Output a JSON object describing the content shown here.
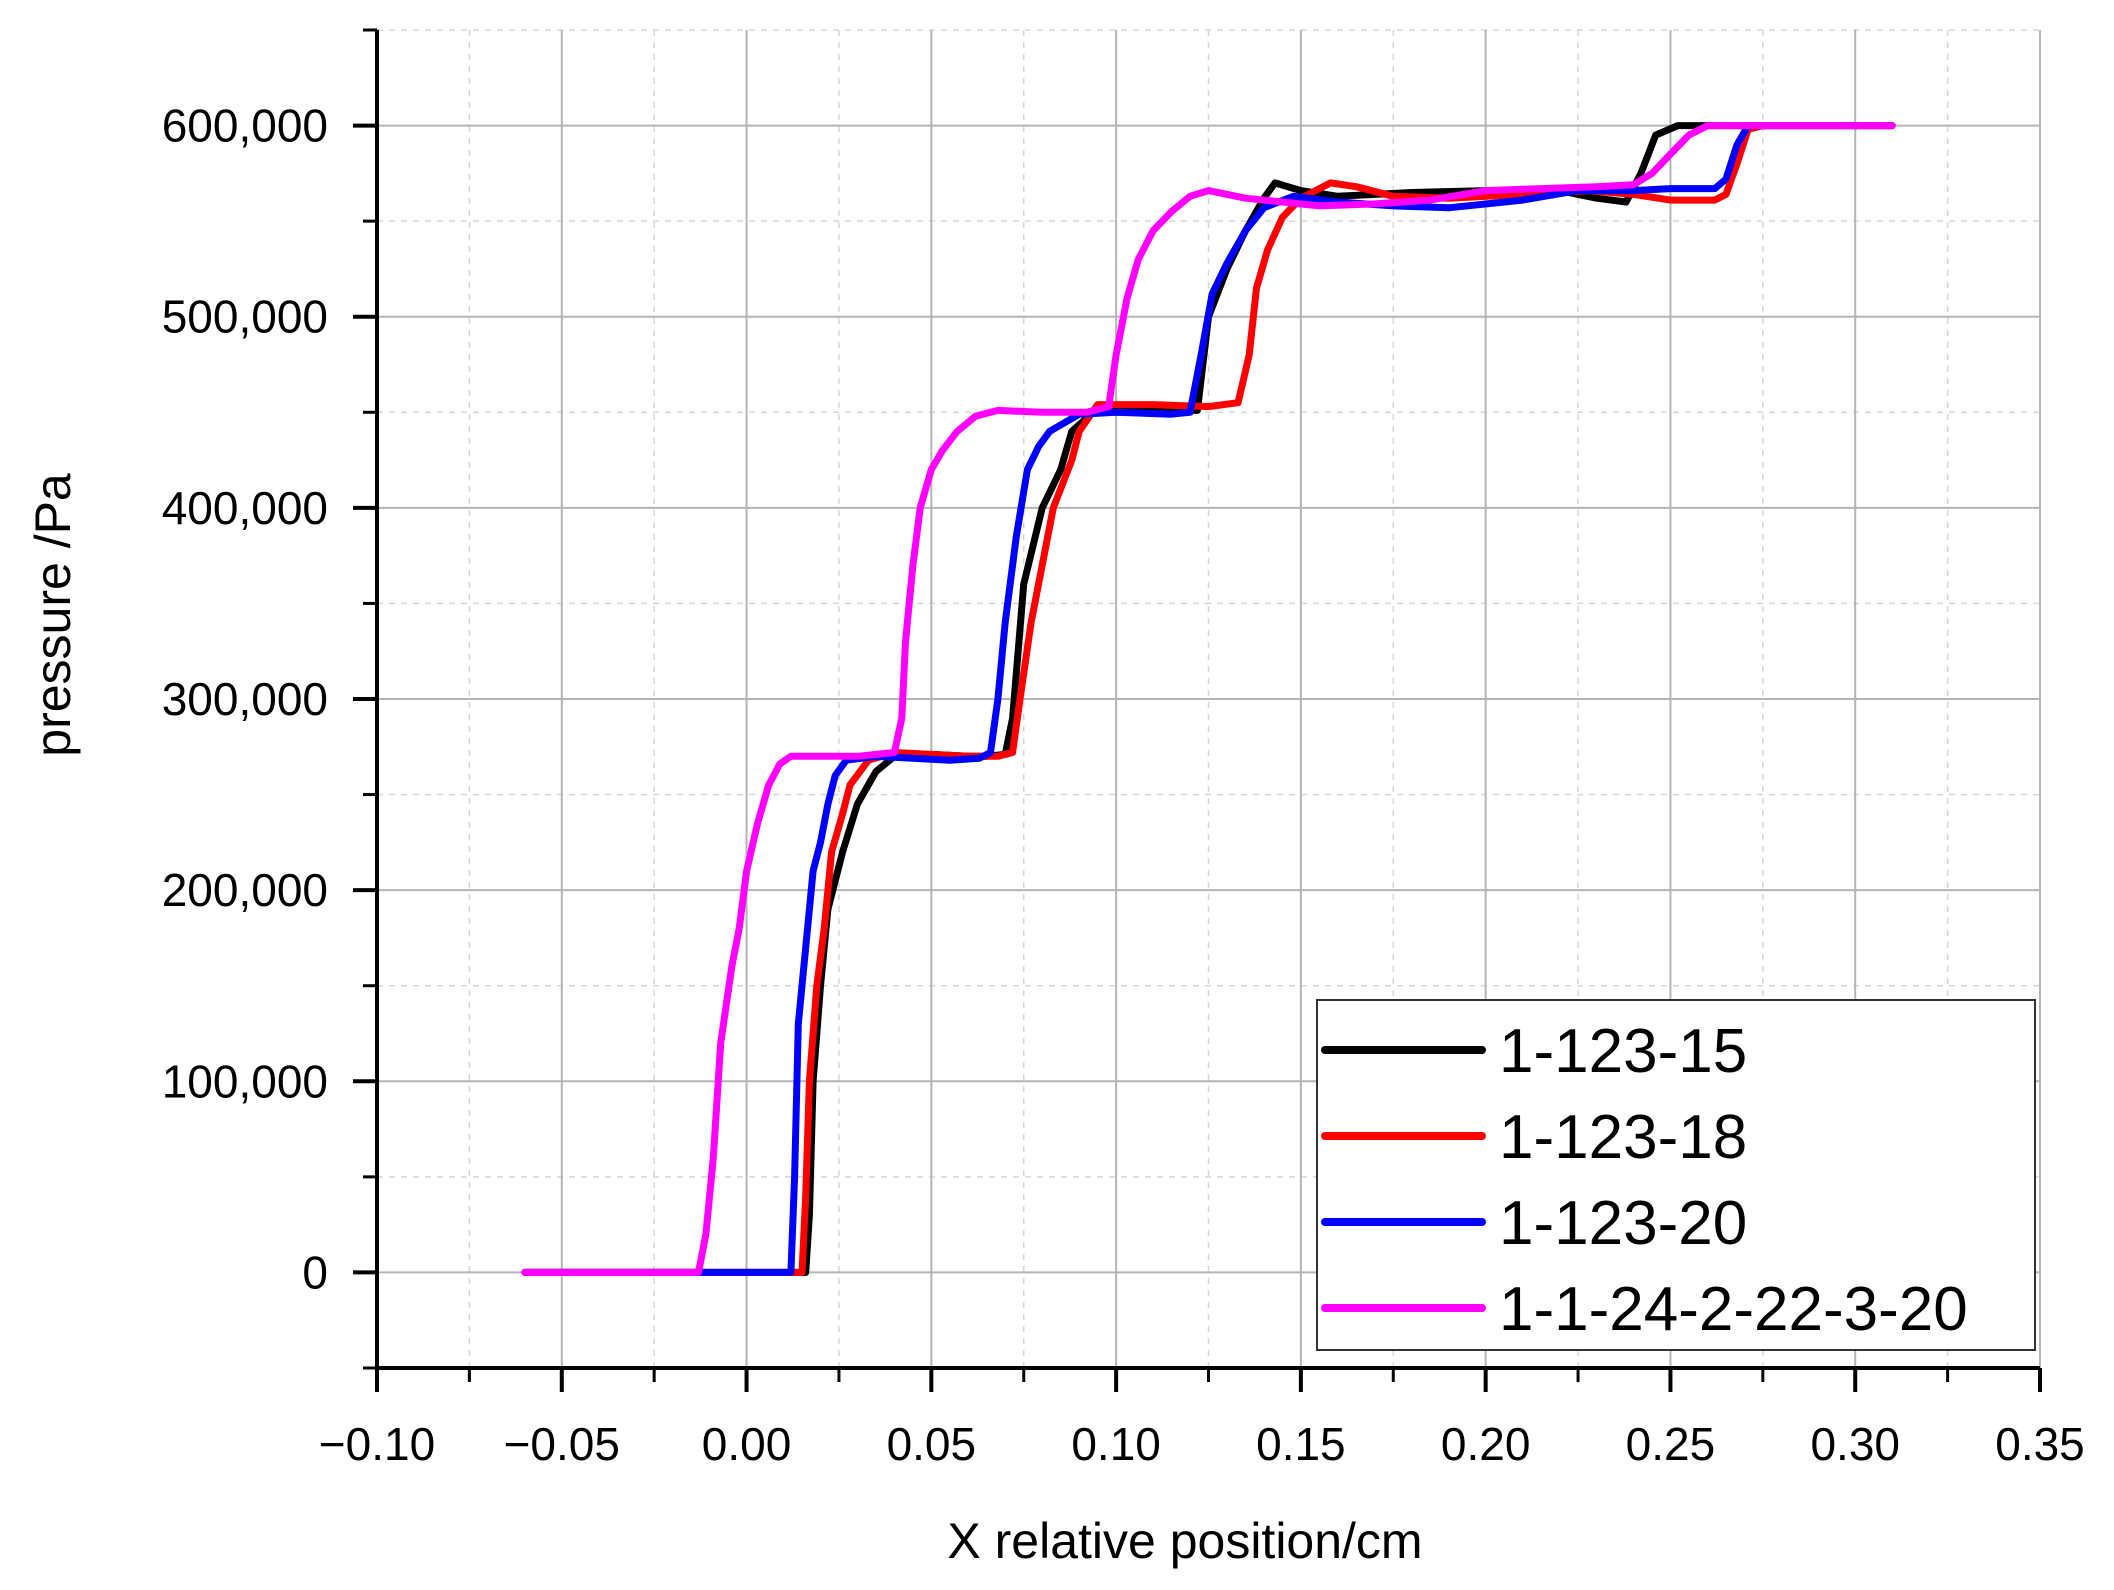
{
  "chart_data": {
    "type": "line",
    "title": "",
    "xlabel": "X relative position/cm",
    "ylabel": "pressure /Pa",
    "xlim": [
      -0.1,
      0.35
    ],
    "ylim": [
      -50000,
      650000
    ],
    "xticks": [
      -0.1,
      -0.05,
      0.0,
      0.05,
      0.1,
      0.15,
      0.2,
      0.25,
      0.3,
      0.35
    ],
    "xtick_labels": [
      "−0.10",
      "−0.05",
      "0.00",
      "0.05",
      "0.10",
      "0.15",
      "0.20",
      "0.25",
      "0.30",
      "0.35"
    ],
    "yticks": [
      0,
      100000,
      200000,
      300000,
      400000,
      500000,
      600000
    ],
    "ytick_labels": [
      "0",
      "100,000",
      "200,000",
      "300,000",
      "400,000",
      "500,000",
      "600,000"
    ],
    "grid": true,
    "legend_position": "bottom-right",
    "series": [
      {
        "name": "1-123-15",
        "color": "#000000",
        "points": [
          [
            -0.06,
            0
          ],
          [
            0.016,
            0
          ],
          [
            0.017,
            30000
          ],
          [
            0.018,
            100000
          ],
          [
            0.02,
            150000
          ],
          [
            0.022,
            190000
          ],
          [
            0.026,
            220000
          ],
          [
            0.03,
            245000
          ],
          [
            0.035,
            262000
          ],
          [
            0.04,
            270000
          ],
          [
            0.05,
            271000
          ],
          [
            0.06,
            270000
          ],
          [
            0.065,
            270000
          ],
          [
            0.07,
            271000
          ],
          [
            0.072,
            290000
          ],
          [
            0.075,
            360000
          ],
          [
            0.08,
            400000
          ],
          [
            0.085,
            420000
          ],
          [
            0.088,
            440000
          ],
          [
            0.095,
            452000
          ],
          [
            0.105,
            452000
          ],
          [
            0.115,
            451000
          ],
          [
            0.122,
            451000
          ],
          [
            0.125,
            500000
          ],
          [
            0.13,
            525000
          ],
          [
            0.135,
            545000
          ],
          [
            0.14,
            562000
          ],
          [
            0.143,
            570000
          ],
          [
            0.15,
            566000
          ],
          [
            0.16,
            563000
          ],
          [
            0.17,
            564000
          ],
          [
            0.18,
            565000
          ],
          [
            0.2,
            566000
          ],
          [
            0.22,
            566000
          ],
          [
            0.23,
            562000
          ],
          [
            0.238,
            560000
          ],
          [
            0.242,
            575000
          ],
          [
            0.246,
            595000
          ],
          [
            0.252,
            600000
          ],
          [
            0.31,
            600000
          ]
        ]
      },
      {
        "name": "1-123-18",
        "color": "#ff0000",
        "points": [
          [
            -0.06,
            0
          ],
          [
            0.015,
            0
          ],
          [
            0.016,
            40000
          ],
          [
            0.017,
            100000
          ],
          [
            0.019,
            150000
          ],
          [
            0.021,
            180000
          ],
          [
            0.023,
            220000
          ],
          [
            0.026,
            240000
          ],
          [
            0.028,
            255000
          ],
          [
            0.033,
            268000
          ],
          [
            0.04,
            272000
          ],
          [
            0.05,
            271000
          ],
          [
            0.06,
            270000
          ],
          [
            0.068,
            270000
          ],
          [
            0.072,
            272000
          ],
          [
            0.074,
            300000
          ],
          [
            0.077,
            340000
          ],
          [
            0.08,
            370000
          ],
          [
            0.083,
            400000
          ],
          [
            0.086,
            415000
          ],
          [
            0.088,
            425000
          ],
          [
            0.09,
            440000
          ],
          [
            0.095,
            454000
          ],
          [
            0.11,
            454000
          ],
          [
            0.125,
            453000
          ],
          [
            0.133,
            455000
          ],
          [
            0.136,
            480000
          ],
          [
            0.138,
            515000
          ],
          [
            0.141,
            535000
          ],
          [
            0.145,
            552000
          ],
          [
            0.15,
            562000
          ],
          [
            0.158,
            570000
          ],
          [
            0.165,
            568000
          ],
          [
            0.175,
            563000
          ],
          [
            0.19,
            562000
          ],
          [
            0.21,
            564000
          ],
          [
            0.228,
            566000
          ],
          [
            0.24,
            564000
          ],
          [
            0.25,
            561000
          ],
          [
            0.262,
            561000
          ],
          [
            0.265,
            564000
          ],
          [
            0.268,
            580000
          ],
          [
            0.271,
            598000
          ],
          [
            0.275,
            600000
          ],
          [
            0.31,
            600000
          ]
        ]
      },
      {
        "name": "1-123-20",
        "color": "#0000ff",
        "points": [
          [
            -0.06,
            0
          ],
          [
            0.012,
            0
          ],
          [
            0.013,
            50000
          ],
          [
            0.014,
            130000
          ],
          [
            0.016,
            170000
          ],
          [
            0.018,
            210000
          ],
          [
            0.02,
            225000
          ],
          [
            0.022,
            245000
          ],
          [
            0.024,
            260000
          ],
          [
            0.027,
            268000
          ],
          [
            0.035,
            270000
          ],
          [
            0.045,
            269000
          ],
          [
            0.055,
            268000
          ],
          [
            0.063,
            269000
          ],
          [
            0.066,
            272000
          ],
          [
            0.068,
            300000
          ],
          [
            0.07,
            340000
          ],
          [
            0.073,
            385000
          ],
          [
            0.076,
            420000
          ],
          [
            0.079,
            432000
          ],
          [
            0.082,
            440000
          ],
          [
            0.09,
            449000
          ],
          [
            0.1,
            450000
          ],
          [
            0.115,
            449000
          ],
          [
            0.12,
            450000
          ],
          [
            0.123,
            480000
          ],
          [
            0.126,
            512000
          ],
          [
            0.13,
            528000
          ],
          [
            0.135,
            545000
          ],
          [
            0.14,
            557000
          ],
          [
            0.148,
            563000
          ],
          [
            0.16,
            560000
          ],
          [
            0.175,
            558000
          ],
          [
            0.19,
            557000
          ],
          [
            0.21,
            561000
          ],
          [
            0.225,
            566000
          ],
          [
            0.24,
            566000
          ],
          [
            0.25,
            567000
          ],
          [
            0.262,
            567000
          ],
          [
            0.265,
            572000
          ],
          [
            0.268,
            590000
          ],
          [
            0.271,
            600000
          ],
          [
            0.31,
            600000
          ]
        ]
      },
      {
        "name": "1-1-24-2-22-3-20",
        "color": "#ff00ff",
        "points": [
          [
            -0.06,
            0
          ],
          [
            -0.013,
            0
          ],
          [
            -0.011,
            20000
          ],
          [
            -0.009,
            60000
          ],
          [
            -0.007,
            120000
          ],
          [
            -0.004,
            160000
          ],
          [
            -0.002,
            180000
          ],
          [
            0.0,
            210000
          ],
          [
            0.003,
            235000
          ],
          [
            0.006,
            255000
          ],
          [
            0.009,
            266000
          ],
          [
            0.012,
            270000
          ],
          [
            0.02,
            270000
          ],
          [
            0.03,
            270000
          ],
          [
            0.04,
            272000
          ],
          [
            0.042,
            290000
          ],
          [
            0.043,
            330000
          ],
          [
            0.045,
            370000
          ],
          [
            0.047,
            400000
          ],
          [
            0.05,
            420000
          ],
          [
            0.053,
            430000
          ],
          [
            0.057,
            440000
          ],
          [
            0.062,
            448000
          ],
          [
            0.068,
            451000
          ],
          [
            0.08,
            450000
          ],
          [
            0.092,
            450000
          ],
          [
            0.098,
            453000
          ],
          [
            0.1,
            480000
          ],
          [
            0.103,
            510000
          ],
          [
            0.106,
            530000
          ],
          [
            0.11,
            545000
          ],
          [
            0.115,
            555000
          ],
          [
            0.12,
            563000
          ],
          [
            0.125,
            566000
          ],
          [
            0.135,
            562000
          ],
          [
            0.145,
            560000
          ],
          [
            0.155,
            558000
          ],
          [
            0.17,
            559000
          ],
          [
            0.185,
            561000
          ],
          [
            0.2,
            566000
          ],
          [
            0.215,
            567000
          ],
          [
            0.23,
            568000
          ],
          [
            0.24,
            569000
          ],
          [
            0.245,
            575000
          ],
          [
            0.25,
            585000
          ],
          [
            0.255,
            595000
          ],
          [
            0.26,
            600000
          ],
          [
            0.31,
            600000
          ]
        ]
      }
    ]
  }
}
